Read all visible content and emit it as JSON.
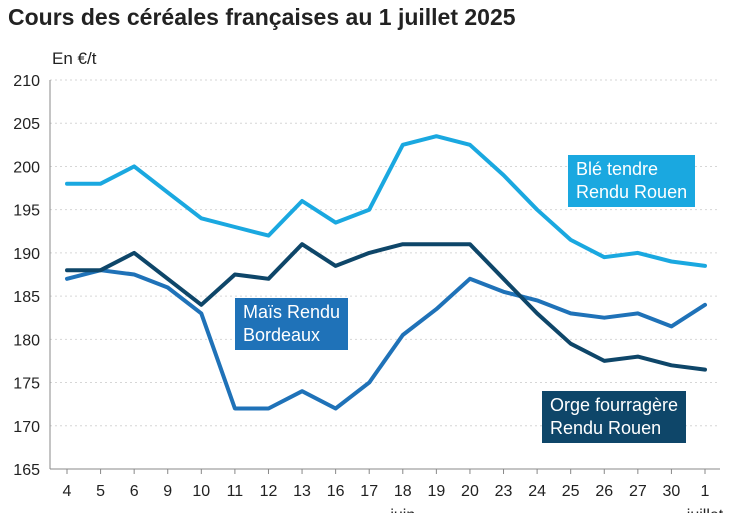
{
  "chart_data": {
    "type": "line",
    "title": "Cours des céréales françaises au 1 juillet 2025",
    "ylabel": "En €/t",
    "xlabel": "",
    "ylim": [
      165,
      210
    ],
    "yticks": [
      165,
      170,
      175,
      180,
      185,
      190,
      195,
      200,
      205,
      210
    ],
    "categories": [
      "4",
      "5",
      "6",
      "9",
      "10",
      "11",
      "12",
      "13",
      "16",
      "17",
      "18",
      "19",
      "20",
      "23",
      "24",
      "25",
      "26",
      "27",
      "30",
      "1"
    ],
    "month_labels": [
      "juin",
      "juillet"
    ],
    "grid": true,
    "series": [
      {
        "name": "Blé tendre Rendu Rouen",
        "label_lines": [
          "Blé tendre",
          "Rendu Rouen"
        ],
        "color": "#1aa8e0",
        "values": [
          198,
          198,
          200,
          197,
          194,
          193,
          192,
          196,
          193.5,
          195,
          202.5,
          203.5,
          202.5,
          199,
          195,
          191.5,
          189.5,
          190,
          189,
          188.5
        ]
      },
      {
        "name": "Maïs Rendu Bordeaux",
        "label_lines": [
          "Maïs Rendu",
          "Bordeaux"
        ],
        "color": "#1f72b8",
        "values": [
          187,
          188,
          187.5,
          186,
          183,
          172,
          172,
          174,
          172,
          175,
          180.5,
          183.5,
          187,
          185.5,
          184.5,
          183,
          182.5,
          183,
          181.5,
          184
        ]
      },
      {
        "name": "Orge fourragère Rendu Rouen",
        "label_lines": [
          "Orge fourragère",
          "Rendu Rouen"
        ],
        "color": "#0e4669",
        "values": [
          188,
          188,
          190,
          187,
          184,
          187.5,
          187,
          191,
          188.5,
          190,
          191,
          191,
          191,
          187,
          183,
          179.5,
          177.5,
          178,
          177,
          176.5
        ]
      }
    ]
  }
}
